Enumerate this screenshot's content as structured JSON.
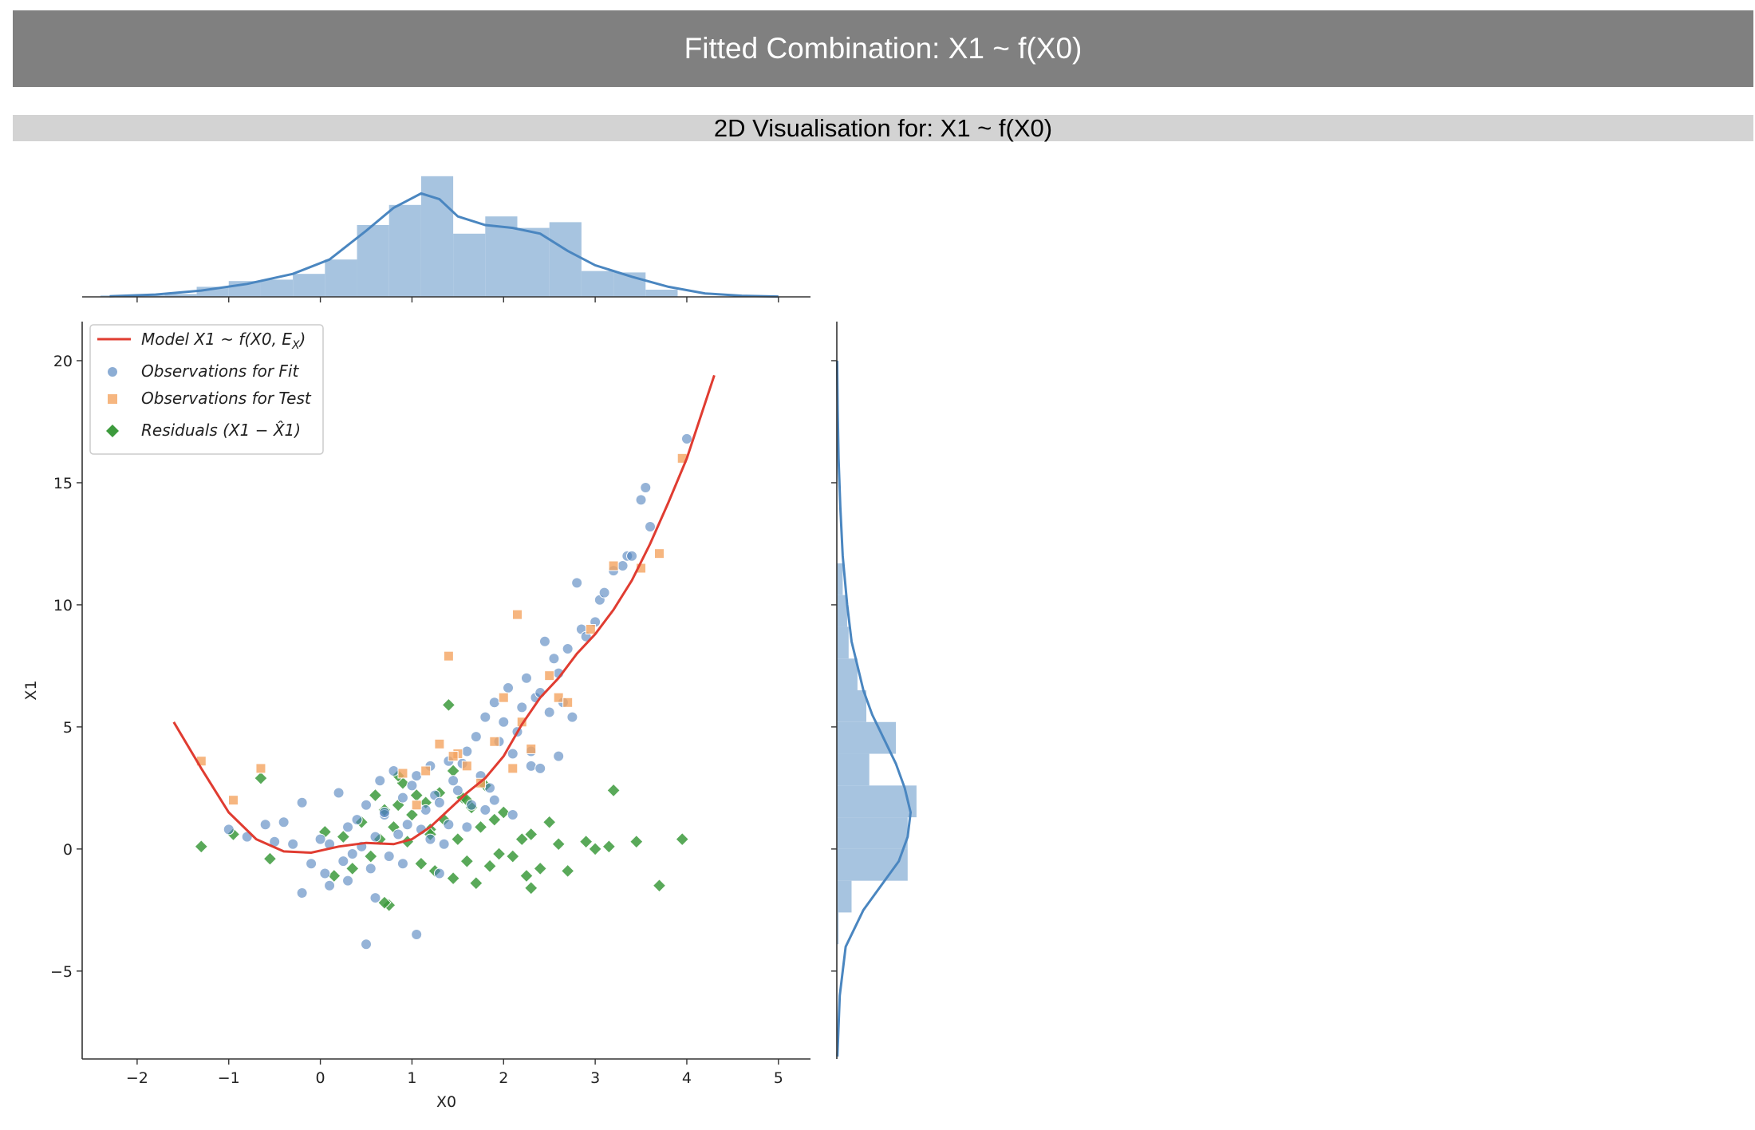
{
  "header": {
    "title": "Fitted Combination: X1 ~ f(X0)"
  },
  "subheader": {
    "title": "2D Visualisation for: X1 ~ f(X0)"
  },
  "colors": {
    "fit": "#4f81bd",
    "test": "#f4a460",
    "residual": "#3c9a3c",
    "model": "#e03c31",
    "hist": "#a7c4e0",
    "kde": "#4a86c0",
    "header_bg": "#808080",
    "subheader_bg": "#d3d3d3"
  },
  "chart_data": {
    "type": "scatter",
    "xlabel": "X0",
    "ylabel": "X1",
    "xlim": [
      -2.6,
      5.35
    ],
    "ylim": [
      -8.6,
      21.6
    ],
    "xticks": [
      -2,
      -1,
      0,
      1,
      2,
      3,
      4,
      5
    ],
    "yticks": [
      -5,
      0,
      5,
      10,
      15,
      20
    ],
    "xtick_labels": [
      "−2",
      "−1",
      "0",
      "1",
      "2",
      "3",
      "4",
      "5"
    ],
    "ytick_labels": [
      "−5",
      "0",
      "5",
      "10",
      "15",
      "20"
    ],
    "legend": {
      "position": "top-left",
      "entries": [
        {
          "label": "Model X1 ~ f(X0, E",
          "sub": "X",
          "tail": ")",
          "marker": "line"
        },
        {
          "label": "Observations for Fit",
          "marker": "circle"
        },
        {
          "label": "Observations for Test",
          "marker": "square"
        },
        {
          "label": "Residuals (X1 − X̂1)",
          "marker": "diamond"
        }
      ]
    },
    "series": [
      {
        "name": "Model X1 ~ f(X0, E_X)",
        "type": "line",
        "x": [
          -1.6,
          -1.3,
          -1.0,
          -0.7,
          -0.4,
          -0.1,
          0.2,
          0.5,
          0.8,
          1.0,
          1.2,
          1.4,
          1.6,
          1.8,
          2.0,
          2.2,
          2.4,
          2.6,
          2.8,
          3.0,
          3.2,
          3.4,
          3.6,
          3.8,
          4.0,
          4.3
        ],
        "y": [
          5.2,
          3.3,
          1.5,
          0.4,
          -0.1,
          -0.15,
          0.1,
          0.25,
          0.2,
          0.4,
          0.9,
          1.6,
          2.3,
          2.9,
          3.8,
          5.1,
          6.2,
          7.0,
          8.0,
          8.8,
          9.8,
          11.0,
          12.5,
          14.2,
          16.0,
          19.4
        ]
      },
      {
        "name": "Observations for Fit",
        "type": "scatter",
        "x": [
          -1.0,
          -0.8,
          -0.6,
          -0.5,
          -0.4,
          -0.3,
          -0.2,
          -0.1,
          0.0,
          0.05,
          0.1,
          0.2,
          0.25,
          0.3,
          0.35,
          0.4,
          0.45,
          0.5,
          0.55,
          0.6,
          0.65,
          0.7,
          0.75,
          0.8,
          0.85,
          0.9,
          0.95,
          1.0,
          1.05,
          1.1,
          1.15,
          1.2,
          1.25,
          1.3,
          1.35,
          1.4,
          1.45,
          1.5,
          1.55,
          1.6,
          1.65,
          1.7,
          1.75,
          1.8,
          1.85,
          1.9,
          1.95,
          2.0,
          2.05,
          2.1,
          2.15,
          2.2,
          2.25,
          2.3,
          2.35,
          2.4,
          2.45,
          2.5,
          2.55,
          2.6,
          2.65,
          2.7,
          2.8,
          2.85,
          2.9,
          3.0,
          3.05,
          3.1,
          3.2,
          3.3,
          3.35,
          3.4,
          3.5,
          3.55,
          3.6,
          4.0,
          0.5,
          1.05,
          0.3,
          0.7,
          1.4,
          1.9,
          2.3,
          0.9,
          1.2,
          1.6,
          2.1,
          2.6,
          -0.2,
          0.1,
          0.6,
          1.3,
          1.8,
          2.4,
          2.75
        ],
        "y": [
          0.8,
          0.5,
          1.0,
          0.3,
          1.1,
          0.2,
          1.9,
          -0.6,
          0.4,
          -1.0,
          0.2,
          2.3,
          -0.5,
          0.9,
          -0.2,
          1.2,
          0.1,
          1.8,
          -0.8,
          0.5,
          2.8,
          1.4,
          -0.3,
          3.2,
          0.6,
          2.1,
          1.0,
          2.6,
          3.0,
          0.8,
          1.6,
          3.4,
          2.2,
          1.9,
          0.2,
          3.6,
          2.8,
          2.4,
          3.5,
          4.0,
          1.8,
          4.6,
          3.0,
          5.4,
          2.5,
          6.0,
          4.4,
          5.2,
          6.6,
          3.9,
          4.8,
          5.8,
          7.0,
          4.0,
          6.2,
          6.4,
          8.5,
          5.6,
          7.8,
          7.2,
          6.0,
          8.2,
          10.9,
          9.0,
          8.7,
          9.3,
          10.2,
          10.5,
          11.4,
          11.6,
          12.0,
          12.0,
          14.3,
          14.8,
          13.2,
          16.8,
          -3.9,
          -3.5,
          -1.3,
          1.5,
          1.0,
          2.0,
          3.4,
          -0.6,
          0.4,
          0.9,
          1.4,
          3.8,
          -1.8,
          -1.5,
          -2.0,
          -1.0,
          1.6,
          3.3,
          5.4
        ]
      },
      {
        "name": "Observations for Test",
        "type": "scatter",
        "x": [
          -1.3,
          -0.95,
          -0.65,
          0.9,
          1.05,
          1.15,
          1.3,
          1.4,
          1.5,
          1.6,
          1.75,
          1.9,
          2.0,
          2.1,
          2.15,
          2.3,
          2.5,
          2.6,
          2.7,
          2.95,
          3.2,
          3.5,
          3.7,
          3.95,
          1.45,
          2.2
        ],
        "y": [
          3.6,
          2.0,
          3.3,
          3.1,
          1.8,
          3.2,
          4.3,
          7.9,
          3.9,
          3.4,
          2.7,
          4.4,
          6.2,
          3.3,
          9.6,
          4.1,
          7.1,
          6.2,
          6.0,
          9.0,
          11.6,
          11.5,
          12.1,
          16.0,
          3.8,
          5.2
        ]
      },
      {
        "name": "Residuals (X1 − X̂1)",
        "type": "scatter",
        "x": [
          -1.3,
          -0.95,
          -0.65,
          -0.55,
          0.05,
          0.15,
          0.25,
          0.35,
          0.45,
          0.55,
          0.6,
          0.65,
          0.7,
          0.75,
          0.8,
          0.85,
          0.9,
          0.95,
          1.0,
          1.05,
          1.1,
          1.15,
          1.2,
          1.25,
          1.3,
          1.35,
          1.4,
          1.45,
          1.5,
          1.55,
          1.6,
          1.65,
          1.7,
          1.75,
          1.8,
          1.85,
          1.9,
          1.95,
          2.0,
          2.1,
          2.2,
          2.25,
          2.3,
          2.4,
          2.5,
          2.6,
          2.7,
          2.9,
          3.0,
          3.15,
          3.2,
          3.45,
          3.7,
          3.95,
          1.45,
          2.3,
          1.6,
          0.85,
          0.7,
          1.2
        ],
        "y": [
          0.1,
          0.6,
          2.9,
          -0.4,
          0.7,
          -1.1,
          0.5,
          -0.8,
          1.1,
          -0.3,
          2.2,
          0.4,
          1.6,
          -2.3,
          0.9,
          1.8,
          2.7,
          0.3,
          1.4,
          2.2,
          -0.6,
          1.9,
          0.8,
          -0.9,
          2.3,
          1.2,
          5.9,
          -1.2,
          0.4,
          2.1,
          -0.5,
          1.7,
          -1.4,
          0.9,
          2.6,
          -0.7,
          1.2,
          -0.2,
          1.5,
          -0.3,
          0.4,
          -1.1,
          0.6,
          -0.8,
          1.1,
          0.2,
          -0.9,
          0.3,
          0.0,
          0.1,
          2.4,
          0.3,
          -1.5,
          0.4,
          3.2,
          -1.6,
          2.0,
          3.0,
          -2.2,
          0.6
        ]
      }
    ],
    "top_histogram": {
      "bins": [
        -2.4,
        -2.05,
        -1.7,
        -1.35,
        -1.0,
        -0.65,
        -0.3,
        0.05,
        0.4,
        0.75,
        1.1,
        1.45,
        1.8,
        2.15,
        2.5,
        2.85,
        3.2,
        3.55,
        3.9
      ],
      "heights": [
        0.005,
        0.005,
        0.01,
        0.035,
        0.055,
        0.06,
        0.08,
        0.13,
        0.25,
        0.32,
        0.42,
        0.22,
        0.28,
        0.24,
        0.26,
        0.09,
        0.085,
        0.025
      ],
      "kde_x": [
        -2.3,
        -1.8,
        -1.3,
        -0.8,
        -0.3,
        0.1,
        0.5,
        0.8,
        1.1,
        1.3,
        1.5,
        1.8,
        2.1,
        2.4,
        2.7,
        3.0,
        3.4,
        3.8,
        4.2,
        4.6,
        5.0
      ],
      "kde_y": [
        0.002,
        0.008,
        0.022,
        0.045,
        0.08,
        0.13,
        0.23,
        0.31,
        0.36,
        0.34,
        0.28,
        0.25,
        0.24,
        0.22,
        0.16,
        0.11,
        0.07,
        0.035,
        0.012,
        0.004,
        0.001
      ]
    },
    "right_histogram": {
      "bins": [
        -3.9,
        -2.6,
        -1.3,
        0.0,
        1.3,
        2.6,
        3.9,
        5.2,
        6.5,
        7.8,
        9.1,
        10.4,
        11.7
      ],
      "widths": [
        0.006,
        0.05,
        0.24,
        0.24,
        0.27,
        0.11,
        0.2,
        0.1,
        0.07,
        0.04,
        0.035,
        0.02
      ],
      "kde_y": [
        -8.5,
        -6.0,
        -4.0,
        -2.5,
        -1.5,
        -0.5,
        0.5,
        1.5,
        2.5,
        3.5,
        4.5,
        5.5,
        6.5,
        7.5,
        8.5,
        10.0,
        12.0,
        14.0,
        16.0,
        18.0,
        20.0
      ],
      "kde_w": [
        0.002,
        0.01,
        0.03,
        0.09,
        0.15,
        0.21,
        0.24,
        0.25,
        0.23,
        0.2,
        0.16,
        0.12,
        0.09,
        0.07,
        0.05,
        0.035,
        0.02,
        0.012,
        0.006,
        0.003,
        0.001
      ]
    }
  }
}
